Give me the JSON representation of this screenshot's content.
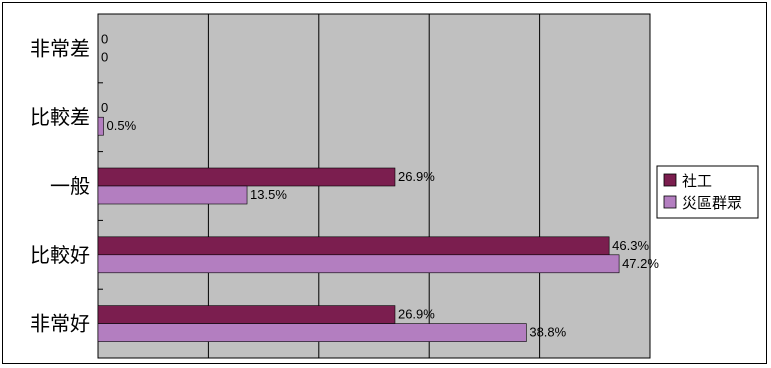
{
  "chart_data": {
    "type": "bar",
    "orientation": "horizontal",
    "categories": [
      "非常差",
      "比較差",
      "一般",
      "比較好",
      "非常好"
    ],
    "series": [
      {
        "name": "社工",
        "color": "#7b1e4f",
        "values": [
          0,
          0,
          26.9,
          46.3,
          26.9
        ],
        "labels": [
          "0",
          "0",
          "26.9%",
          "46.3%",
          "26.9%"
        ]
      },
      {
        "name": "災區群眾",
        "color": "#b37ec0",
        "values": [
          0,
          0.5,
          13.5,
          47.2,
          38.8
        ],
        "labels": [
          "0",
          "0.5%",
          "13.5%",
          "47.2%",
          "38.8%"
        ]
      }
    ],
    "xlim": [
      0,
      50
    ],
    "grid": true,
    "plot_background": "#c0c0c0",
    "legend_position": "right"
  }
}
